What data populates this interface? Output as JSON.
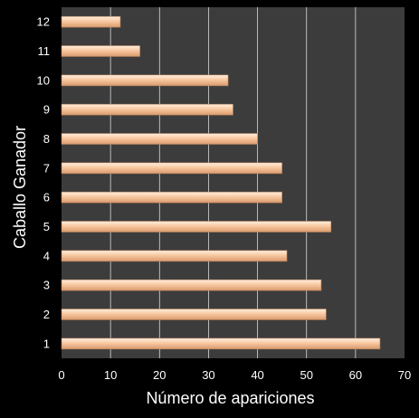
{
  "chart_data": {
    "type": "bar",
    "orientation": "horizontal",
    "title": "",
    "xlabel": "Número de apariciones",
    "ylabel": "Caballo Ganador",
    "categories": [
      "1",
      "2",
      "3",
      "4",
      "5",
      "6",
      "7",
      "8",
      "9",
      "10",
      "11",
      "12"
    ],
    "values": [
      65,
      54,
      53,
      46,
      55,
      45,
      45,
      40,
      35,
      34,
      16,
      12
    ],
    "xlim": [
      0,
      70
    ],
    "xticks": [
      "0",
      "10",
      "20",
      "30",
      "40",
      "50",
      "60",
      "70"
    ],
    "grid": "vertical",
    "legend": "none",
    "colors": {
      "page_background": "#000000",
      "plot_background": "#3c3c3c",
      "gridline": "#d9d9d9",
      "bar_fill_light": "#fff0e0",
      "bar_fill_mid": "#f8c8a0",
      "bar_fill_dark": "#d99a6e",
      "bar_stroke": "#b07a52",
      "text": "#ffffff"
    }
  }
}
